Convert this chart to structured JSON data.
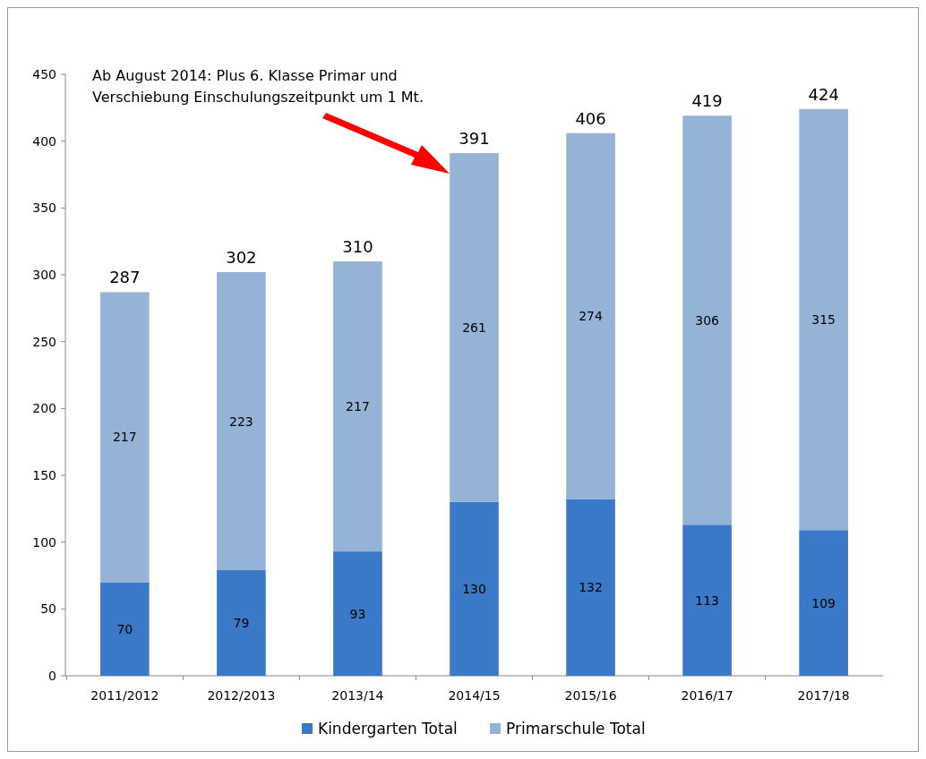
{
  "chart_data": {
    "type": "bar",
    "stacked": true,
    "categories": [
      "2011/2012",
      "2012/2013",
      "2013/14",
      "2014/15",
      "2015/16",
      "2016/17",
      "2017/18"
    ],
    "series": [
      {
        "name": "Kindergarten Total",
        "color": "#3a78c8",
        "values": [
          70,
          79,
          93,
          130,
          132,
          113,
          109
        ]
      },
      {
        "name": "Primarschule Total",
        "color": "#95b3d7",
        "values": [
          217,
          223,
          217,
          261,
          274,
          306,
          315
        ]
      }
    ],
    "totals": [
      "287",
      "302",
      "310",
      "391",
      "406",
      "419",
      "424"
    ],
    "data_labels": true,
    "ylim": [
      0,
      450
    ],
    "yticks": [
      0,
      50,
      100,
      150,
      200,
      250,
      300,
      350,
      400,
      450
    ],
    "legend": "bottom",
    "annotations": [
      "Ab August 2014: Plus 6. Klasse Primar und Verschiebung Einschulungszeitpunkt um 1 Mt."
    ]
  }
}
